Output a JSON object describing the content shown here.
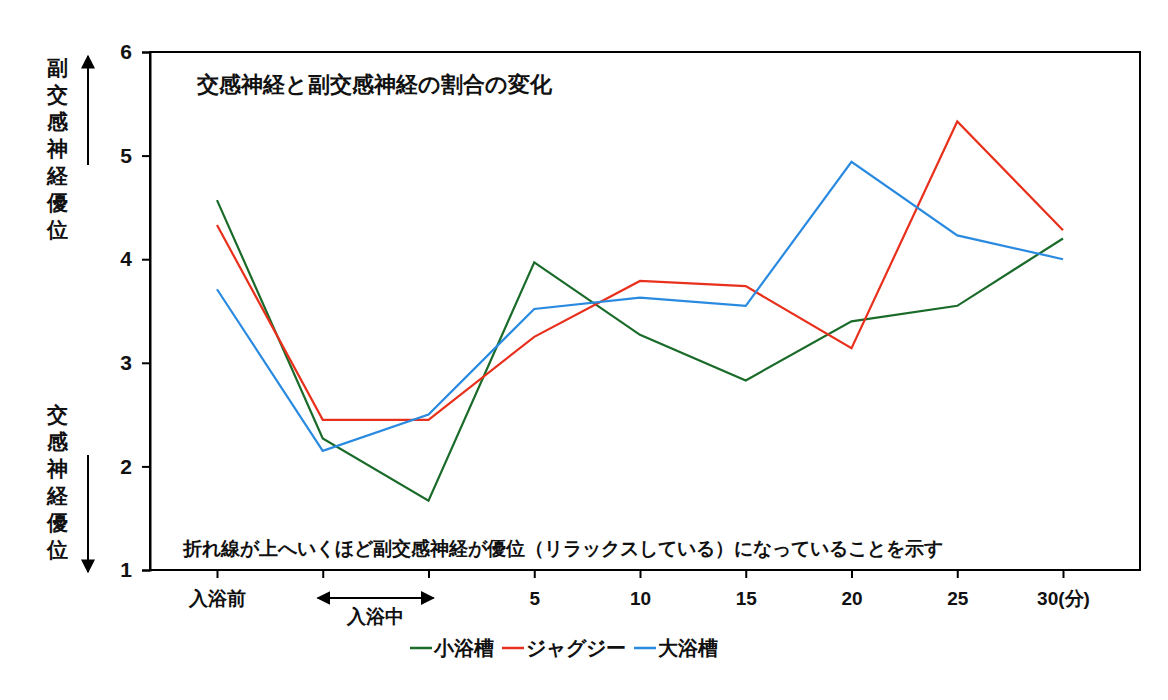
{
  "chart_data": {
    "type": "line",
    "title": "交感神経と副交感神経の割合の変化",
    "ylabel_upper": "副交感神経優位",
    "ylabel_lower": "交感神経優位",
    "note": "折れ線が上へいくほど副交感神経が優位（リラックスしている）になっていることを示す",
    "span_label": {
      "text": "入浴中",
      "from": 1,
      "to": 2
    },
    "categories": [
      "入浴前",
      null,
      null,
      "5",
      "10",
      "15",
      "20",
      "25",
      "30(分)"
    ],
    "series": [
      {
        "name": "小浴槽",
        "color": "#1a6b2a",
        "values": [
          4.57,
          2.27,
          1.67,
          3.97,
          3.27,
          2.83,
          3.4,
          3.55,
          4.2
        ]
      },
      {
        "name": "ジャグジー",
        "color": "#e8301c",
        "values": [
          4.33,
          2.45,
          2.45,
          3.25,
          3.79,
          3.74,
          3.14,
          5.33,
          4.28
        ]
      },
      {
        "name": "大浴槽",
        "color": "#2a8ae0",
        "values": [
          3.71,
          2.15,
          2.5,
          3.52,
          3.63,
          3.55,
          4.94,
          4.23,
          4.0
        ]
      }
    ],
    "ylim": [
      1,
      6
    ],
    "yticks": [
      1,
      2,
      3,
      4,
      5,
      6
    ],
    "grid": false,
    "legend": "bottom"
  }
}
